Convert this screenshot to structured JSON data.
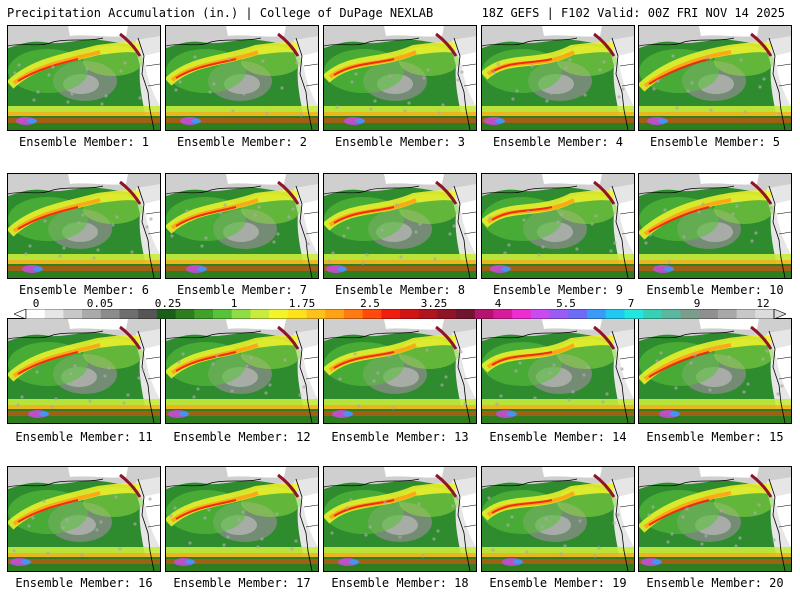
{
  "header": {
    "title": "Precipitation Accumulation (in.) | College of DuPage NEXLAB",
    "run_info": "18Z GEFS | F102 Valid: 00Z FRI NOV 14 2025"
  },
  "colorbar": {
    "labels": [
      "0",
      "0.05",
      "0.25",
      "1",
      "1.75",
      "2.5",
      "3.25",
      "4",
      "5.5",
      "7",
      "9",
      "12"
    ],
    "colors": [
      "#ffffff",
      "#e6e6e6",
      "#c8c8c8",
      "#aaaaaa",
      "#8c8c8c",
      "#6e6e6e",
      "#555555",
      "#1a5e1a",
      "#2e7d1e",
      "#3fa02a",
      "#58c23a",
      "#8edc46",
      "#c8ec3c",
      "#f2f52c",
      "#ffe21e",
      "#ffc21a",
      "#ffa214",
      "#ff7a10",
      "#ff4a0c",
      "#f01e10",
      "#d21414",
      "#b0141e",
      "#901428",
      "#701430",
      "#b4146e",
      "#d61c9a",
      "#ee2cd2",
      "#c84af0",
      "#9a5cf6",
      "#6c6cf8",
      "#3a9af8",
      "#20c8f4",
      "#22e6e0",
      "#36d0b4",
      "#5ab8a0",
      "#7c9c8c",
      "#909090",
      "#a8a8a8",
      "#c8c8c8",
      "#dcdcdc"
    ]
  },
  "members": [
    {
      "label": "Ensemble Member: 1"
    },
    {
      "label": "Ensemble Member: 2"
    },
    {
      "label": "Ensemble Member: 3"
    },
    {
      "label": "Ensemble Member: 4"
    },
    {
      "label": "Ensemble Member: 5"
    },
    {
      "label": "Ensemble Member: 6"
    },
    {
      "label": "Ensemble Member: 7"
    },
    {
      "label": "Ensemble Member: 8"
    },
    {
      "label": "Ensemble Member: 9"
    },
    {
      "label": "Ensemble Member: 10"
    },
    {
      "label": "Ensemble Member: 11"
    },
    {
      "label": "Ensemble Member: 12"
    },
    {
      "label": "Ensemble Member: 13"
    },
    {
      "label": "Ensemble Member: 14"
    },
    {
      "label": "Ensemble Member: 15"
    },
    {
      "label": "Ensemble Member: 16"
    },
    {
      "label": "Ensemble Member: 17"
    },
    {
      "label": "Ensemble Member: 18"
    },
    {
      "label": "Ensemble Member: 19"
    },
    {
      "label": "Ensemble Member: 20"
    }
  ]
}
